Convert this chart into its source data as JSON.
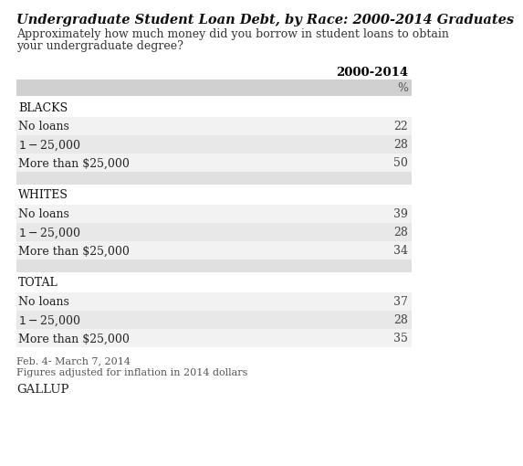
{
  "title": "Undergraduate Student Loan Debt, by Race: 2000-2014 Graduates",
  "subtitle_line1": "Approximately how much money did you borrow in student loans to obtain",
  "subtitle_line2": "your undergraduate degree?",
  "column_header": "2000-2014",
  "column_subheader": "%",
  "sections": [
    {
      "group": "BLACKS",
      "rows": [
        {
          "label": "No loans",
          "value": "22"
        },
        {
          "label": "$1-$25,000",
          "value": "28"
        },
        {
          "label": "More than $25,000",
          "value": "50"
        }
      ]
    },
    {
      "group": "WHITES",
      "rows": [
        {
          "label": "No loans",
          "value": "39"
        },
        {
          "label": "$1-$25,000",
          "value": "28"
        },
        {
          "label": "More than $25,000",
          "value": "34"
        }
      ]
    },
    {
      "group": "TOTAL",
      "rows": [
        {
          "label": "No loans",
          "value": "37"
        },
        {
          "label": "$1-$25,000",
          "value": "28"
        },
        {
          "label": "More than $25,000",
          "value": "35"
        }
      ]
    }
  ],
  "footer_line1": "Feb. 4- March 7, 2014",
  "footer_line2": "Figures adjusted for inflation in 2014 dollars",
  "footer_brand": "GALLUP",
  "bg_color": "#ffffff",
  "row_alt1": "#f2f2f2",
  "row_alt2": "#e8e8e8",
  "header_bg": "#d0d0d0",
  "group_bg": "#d8d8d8",
  "spacer_bg": "#e0e0e0",
  "title_color": "#111111",
  "text_color": "#333333",
  "value_color": "#444444",
  "title_fontsize": 10.5,
  "subtitle_fontsize": 9.0,
  "table_fontsize": 9.0,
  "col_header_fontsize": 9.5,
  "footer_fontsize": 8.0,
  "brand_fontsize": 9.5
}
